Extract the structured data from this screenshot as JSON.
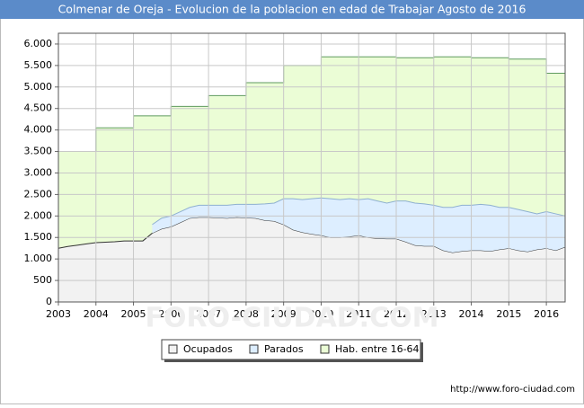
{
  "chart_data": {
    "type": "area",
    "title": "Colmenar de Oreja - Evolucion de la poblacion en edad de Trabajar Agosto de 2016",
    "watermark": "FORO-CIUDAD.COM",
    "source": "http://www.foro-ciudad.com",
    "x": [
      2003,
      2003.25,
      2003.5,
      2003.75,
      2004,
      2004.25,
      2004.5,
      2004.75,
      2005,
      2005.25,
      2005.5,
      2005.75,
      2006,
      2006.25,
      2006.5,
      2006.75,
      2007,
      2007.25,
      2007.5,
      2007.75,
      2008,
      2008.25,
      2008.5,
      2008.75,
      2009,
      2009.25,
      2009.5,
      2009.75,
      2010,
      2010.25,
      2010.5,
      2010.75,
      2011,
      2011.25,
      2011.5,
      2011.75,
      2012,
      2012.25,
      2012.5,
      2012.75,
      2013,
      2013.25,
      2013.5,
      2013.75,
      2014,
      2014.25,
      2014.5,
      2014.75,
      2015,
      2015.25,
      2015.5,
      2015.75,
      2016,
      2016.25,
      2016.5
    ],
    "series": [
      {
        "name": "Hab. entre 16-64",
        "color": "#ebfdd6",
        "stroke": "#5f9a5f",
        "step": true,
        "stacked": false,
        "values": [
          3500,
          3500,
          3500,
          3500,
          4050,
          4050,
          4050,
          4050,
          4330,
          4330,
          4330,
          4330,
          4550,
          4550,
          4550,
          4550,
          4800,
          4800,
          4800,
          4800,
          5100,
          5100,
          5100,
          5100,
          5500,
          5500,
          5500,
          5500,
          5700,
          5700,
          5700,
          5700,
          5700,
          5700,
          5700,
          5700,
          5680,
          5680,
          5680,
          5680,
          5700,
          5700,
          5700,
          5700,
          5680,
          5680,
          5680,
          5680,
          5650,
          5650,
          5650,
          5650,
          5320,
          5320,
          5320
        ]
      },
      {
        "name": "Ocupados",
        "color": "#f2f2f2",
        "stroke": "#333333",
        "step": false,
        "stacked": true,
        "values": [
          1250,
          1290,
          1320,
          1350,
          1380,
          1390,
          1400,
          1420,
          1420,
          1420,
          1600,
          1700,
          1750,
          1850,
          1950,
          1970,
          1970,
          1960,
          1950,
          1970,
          1960,
          1950,
          1900,
          1880,
          1800,
          1680,
          1620,
          1580,
          1550,
          1500,
          1500,
          1520,
          1550,
          1500,
          1480,
          1470,
          1470,
          1400,
          1320,
          1300,
          1300,
          1200,
          1150,
          1180,
          1200,
          1200,
          1180,
          1220,
          1250,
          1200,
          1170,
          1220,
          1250,
          1200,
          1280
        ]
      },
      {
        "name": "Parados",
        "color": "#ddeeff",
        "stroke": "#8fb0d0",
        "step": false,
        "stacked": true,
        "values": [
          null,
          null,
          null,
          null,
          null,
          null,
          null,
          null,
          null,
          null,
          200,
          250,
          250,
          250,
          250,
          280,
          280,
          290,
          300,
          300,
          310,
          320,
          380,
          420,
          600,
          720,
          760,
          820,
          870,
          900,
          880,
          880,
          830,
          900,
          870,
          830,
          880,
          950,
          980,
          980,
          950,
          1000,
          1050,
          1070,
          1050,
          1070,
          1070,
          980,
          950,
          950,
          930,
          830,
          850,
          850,
          720
        ]
      }
    ],
    "legend_order": [
      1,
      2,
      0
    ],
    "xlim": [
      2003,
      2016.5
    ],
    "xticks": [
      2003,
      2004,
      2005,
      2006,
      2007,
      2008,
      2009,
      2010,
      2011,
      2012,
      2013,
      2014,
      2015,
      2016
    ],
    "ylim": [
      0,
      6250
    ],
    "yticks": [
      0,
      500,
      {
        "value": 1000,
        "label": "1.000"
      },
      {
        "value": 1500,
        "label": "1.500"
      },
      {
        "value": 2000,
        "label": "2.000"
      },
      {
        "value": 2500,
        "label": "2.500"
      },
      {
        "value": 3000,
        "label": "3.000"
      },
      {
        "value": 3500,
        "label": "3.500"
      },
      {
        "value": 4000,
        "label": "4.000"
      },
      {
        "value": 4500,
        "label": "4.500"
      },
      {
        "value": 5000,
        "label": "5.000"
      },
      {
        "value": 5500,
        "label": "5.500"
      },
      {
        "value": 6000,
        "label": "6.000"
      }
    ],
    "grid": true
  }
}
